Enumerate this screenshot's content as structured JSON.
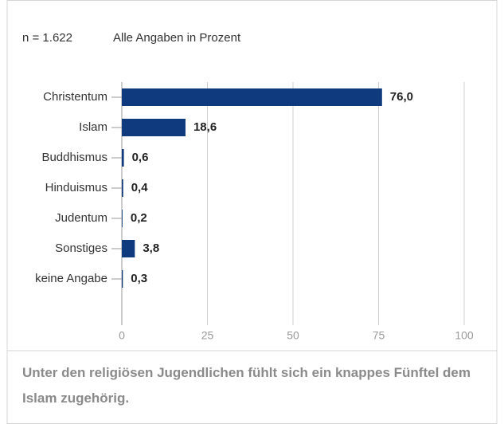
{
  "chart_data": {
    "type": "bar",
    "orientation": "horizontal",
    "subtitle": [
      "n = 1.622",
      "Alle Angaben in Prozent"
    ],
    "categories": [
      "Christentum",
      "Islam",
      "Buddhismus",
      "Hinduismus",
      "Judentum",
      "Sonstiges",
      "keine Angabe"
    ],
    "values": [
      76.0,
      18.6,
      0.6,
      0.4,
      0.2,
      3.8,
      0.3
    ],
    "value_labels": [
      "76,0",
      "18,6",
      "0,6",
      "0,4",
      "0,2",
      "3,8",
      "0,3"
    ],
    "color": "#0f3a7d",
    "xlim": [
      0,
      100
    ],
    "xticks": [
      0,
      25,
      50,
      75,
      100
    ],
    "grid": true,
    "caption": "Unter den religiösen Jugendlichen fühlt sich ein knappes Fünftel dem Islam zugehörig."
  }
}
